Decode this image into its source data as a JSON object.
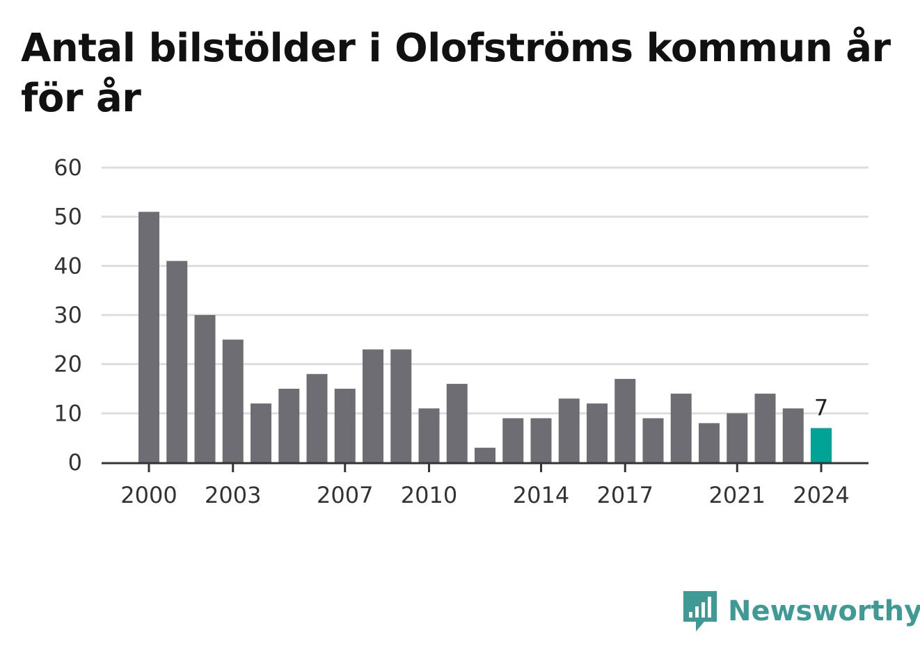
{
  "title": "Antal bilstölder i Olofströms kommun år för år",
  "brand": {
    "name": "Newsworthy",
    "icon": "bar-chart-speech-bubble-icon",
    "color": "#3f9a96"
  },
  "colors": {
    "bar": "#6e6d73",
    "highlight": "#00a396",
    "grid": "#dddddd",
    "axis": "#333333"
  },
  "chart_data": {
    "type": "bar",
    "title": "Antal bilstölder i Olofströms kommun år för år",
    "xlabel": "",
    "ylabel": "",
    "categories": [
      "2000",
      "2001",
      "2002",
      "2003",
      "2004",
      "2005",
      "2006",
      "2007",
      "2008",
      "2009",
      "2010",
      "2011",
      "2012",
      "2013",
      "2014",
      "2015",
      "2016",
      "2017",
      "2018",
      "2019",
      "2020",
      "2021",
      "2022",
      "2023",
      "2024"
    ],
    "values": [
      51,
      41,
      30,
      25,
      12,
      15,
      18,
      15,
      23,
      23,
      11,
      16,
      3,
      9,
      9,
      13,
      12,
      17,
      9,
      14,
      8,
      10,
      14,
      11,
      7
    ],
    "x_tick_labels": [
      "2000",
      "2003",
      "2007",
      "2010",
      "2014",
      "2017",
      "2021",
      "2024"
    ],
    "y_ticks": [
      0,
      10,
      20,
      30,
      40,
      50,
      60
    ],
    "ylim": [
      0,
      60
    ],
    "grid": true,
    "legend": "none",
    "highlight": {
      "category": "2024",
      "label": "7"
    }
  }
}
